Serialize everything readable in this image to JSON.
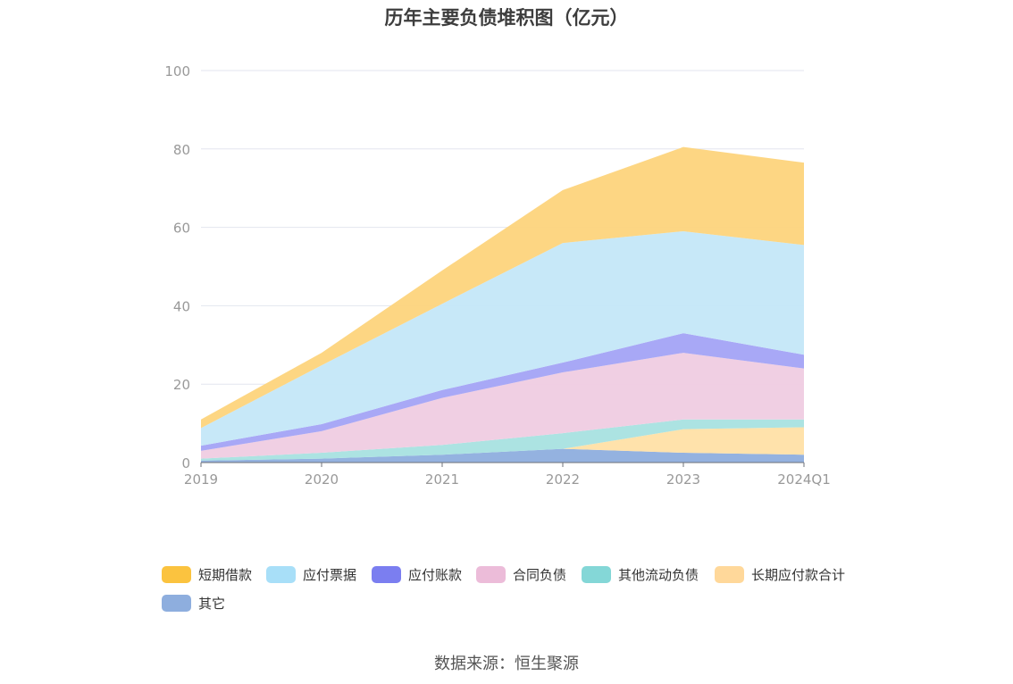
{
  "chart_data": {
    "type": "area",
    "title": "历年主要负债堆积图（亿元）",
    "categories": [
      "2019",
      "2020",
      "2021",
      "2022",
      "2023",
      "2024Q1"
    ],
    "y_ticks": [
      "0",
      "20",
      "40",
      "60",
      "80",
      "100"
    ],
    "ylim": [
      0,
      100
    ],
    "stacked": true,
    "grid": true,
    "legend_position": "bottom",
    "series": [
      {
        "name": "其它",
        "color": "#8eaede",
        "values": [
          0.5,
          1.0,
          2.0,
          3.5,
          2.5,
          2.0
        ]
      },
      {
        "name": "长期应付款合计",
        "color": "#ffe0a6",
        "values": [
          0.0,
          0.0,
          0.0,
          0.0,
          6.0,
          7.0
        ]
      },
      {
        "name": "其他流动负债",
        "color": "#a8e2e0",
        "values": [
          0.5,
          1.5,
          2.5,
          4.0,
          2.5,
          2.0
        ]
      },
      {
        "name": "合同负债",
        "color": "#efcce2",
        "values": [
          2.0,
          5.5,
          12.0,
          15.5,
          17.0,
          13.0
        ]
      },
      {
        "name": "应付账款",
        "color": "#a3a3f5",
        "values": [
          1.3,
          1.8,
          2.0,
          2.5,
          5.0,
          3.5
        ]
      },
      {
        "name": "应付票据",
        "color": "#c4e7f8",
        "values": [
          4.5,
          15.0,
          22.0,
          30.5,
          26.0,
          28.0
        ]
      },
      {
        "name": "短期借款",
        "color": "#fdd47c",
        "values": [
          2.2,
          3.2,
          8.5,
          13.5,
          21.5,
          21.0
        ]
      }
    ]
  },
  "legend": {
    "items": [
      {
        "label": "短期借款",
        "color": "#fbc33f"
      },
      {
        "label": "应付票据",
        "color": "#a8dff8"
      },
      {
        "label": "应付账款",
        "color": "#7b7ef0"
      },
      {
        "label": "合同负债",
        "color": "#ecbcd9"
      },
      {
        "label": "其他流动负债",
        "color": "#84d7d7"
      },
      {
        "label": "长期应付款合计",
        "color": "#ffd89a"
      },
      {
        "label": "其它",
        "color": "#8eaede"
      }
    ]
  },
  "source": {
    "text": "数据来源：恒生聚源"
  }
}
